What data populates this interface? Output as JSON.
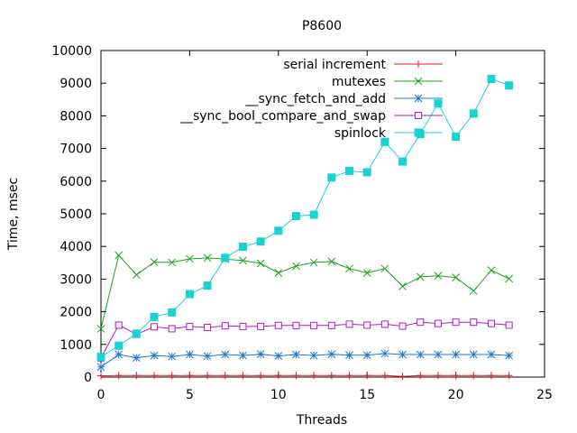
{
  "chart_data": {
    "type": "line",
    "title": "P8600",
    "xlabel": "Threads",
    "ylabel": "Time, msec",
    "xlim": [
      0,
      25
    ],
    "ylim": [
      0,
      10000
    ],
    "x_ticks": [
      0,
      5,
      10,
      15,
      20,
      25
    ],
    "y_ticks": [
      0,
      1000,
      2000,
      3000,
      4000,
      5000,
      6000,
      7000,
      8000,
      9000,
      10000
    ],
    "grid": false,
    "legend_position": "top-right",
    "x": [
      0,
      1,
      2,
      3,
      4,
      5,
      6,
      7,
      8,
      9,
      10,
      11,
      12,
      13,
      14,
      15,
      16,
      17,
      18,
      19,
      20,
      21,
      22,
      23
    ],
    "series": [
      {
        "name": "serial increment",
        "color": "#e31a1c",
        "marker": "plus",
        "values": [
          40,
          50,
          50,
          50,
          50,
          50,
          50,
          50,
          50,
          50,
          50,
          50,
          50,
          50,
          50,
          50,
          50,
          20,
          50,
          50,
          50,
          50,
          50,
          50
        ]
      },
      {
        "name": "mutexes",
        "color": "#1aa31a",
        "marker": "cross",
        "values": [
          1480,
          3730,
          3130,
          3520,
          3510,
          3620,
          3650,
          3610,
          3570,
          3480,
          3190,
          3400,
          3510,
          3540,
          3320,
          3190,
          3320,
          2780,
          3070,
          3100,
          3050,
          2640,
          3270,
          3010
        ]
      },
      {
        "name": "__sync_fetch_and_add",
        "color": "#1f78c8",
        "marker": "star",
        "values": [
          310,
          690,
          590,
          660,
          630,
          690,
          640,
          690,
          660,
          700,
          650,
          690,
          660,
          700,
          670,
          670,
          720,
          690,
          690,
          690,
          690,
          690,
          690,
          660
        ]
      },
      {
        "name": "__sync_bool_compare_and_swap",
        "color": "#b01ac8",
        "marker": "open-square",
        "values": [
          590,
          1590,
          1310,
          1540,
          1480,
          1550,
          1520,
          1570,
          1550,
          1550,
          1580,
          1580,
          1580,
          1580,
          1620,
          1590,
          1620,
          1560,
          1680,
          1640,
          1680,
          1680,
          1640,
          1590
        ]
      },
      {
        "name": "spinlock",
        "color": "#17d3d3",
        "marker": "filled-square",
        "values": [
          620,
          960,
          1330,
          1840,
          1980,
          2540,
          2800,
          3650,
          3990,
          4150,
          4480,
          4930,
          4970,
          6110,
          6310,
          6270,
          7200,
          6600,
          7440,
          8380,
          7360,
          8070,
          9130,
          8930
        ]
      }
    ]
  }
}
